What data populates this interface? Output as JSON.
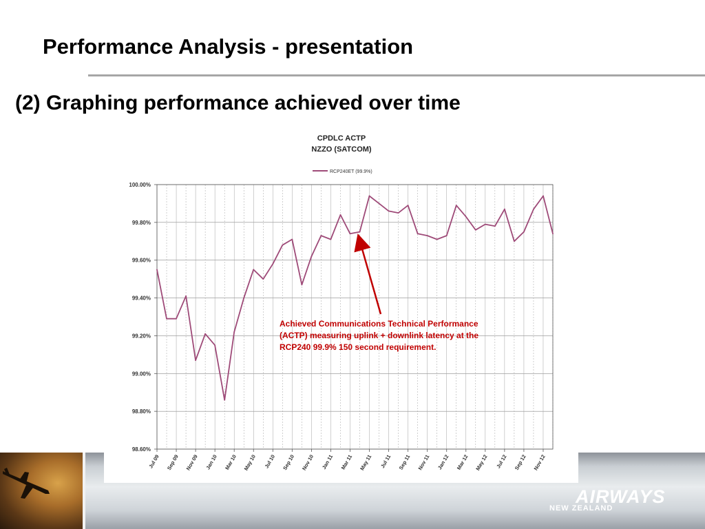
{
  "slide": {
    "title": "Performance Analysis - presentation",
    "subtitle": "(2) Graphing performance achieved over time"
  },
  "footer": {
    "brand": "AIRWAYS",
    "brand_sub": "NEW ZEALAND",
    "photo_icon": "airplane-icon"
  },
  "chart_data": {
    "type": "line",
    "title": "CPDLC ACTP",
    "subtitle": "NZZO (SATCOM)",
    "legend_position": "top",
    "grid": true,
    "ylim": [
      98.6,
      100.0
    ],
    "yticks": [
      100.0,
      99.8,
      99.6,
      99.4,
      99.2,
      99.0,
      98.8,
      98.6
    ],
    "ytick_labels": [
      "100.00%",
      "99.80%",
      "99.60%",
      "99.40%",
      "99.20%",
      "99.00%",
      "98.80%",
      "98.60%"
    ],
    "xtick_labels": [
      "Jul 09",
      "Sep 09",
      "Nov 09",
      "Jan 10",
      "Mar 10",
      "May 10",
      "Jul 10",
      "Sep 10",
      "Nov 10",
      "Jan 11",
      "Mar 11",
      "May 11",
      "Jul 11",
      "Sep 11",
      "Nov 11",
      "Jan 12",
      "Mar 12",
      "May 12",
      "Jul 12",
      "Sep 12",
      "Nov 12"
    ],
    "x": [
      "Jul 09",
      "Aug 09",
      "Sep 09",
      "Oct 09",
      "Nov 09",
      "Dec 09",
      "Jan 10",
      "Feb 10",
      "Mar 10",
      "Apr 10",
      "May 10",
      "Jun 10",
      "Jul 10",
      "Aug 10",
      "Sep 10",
      "Oct 10",
      "Nov 10",
      "Dec 10",
      "Jan 11",
      "Feb 11",
      "Mar 11",
      "Apr 11",
      "May 11",
      "Jun 11",
      "Jul 11",
      "Aug 11",
      "Sep 11",
      "Oct 11",
      "Nov 11",
      "Dec 11",
      "Jan 12",
      "Feb 12",
      "Mar 12",
      "Apr 12",
      "May 12",
      "Jun 12",
      "Jul 12",
      "Aug 12",
      "Sep 12",
      "Oct 12",
      "Nov 12",
      "Dec 12"
    ],
    "series": [
      {
        "name": "RCP240ET (99.9%)",
        "color": "#9e4a78",
        "values": [
          99.55,
          99.29,
          99.29,
          99.41,
          99.07,
          99.21,
          99.15,
          98.86,
          99.22,
          99.4,
          99.55,
          99.5,
          99.58,
          99.68,
          99.71,
          99.47,
          99.62,
          99.73,
          99.71,
          99.84,
          99.74,
          99.75,
          99.94,
          99.9,
          99.86,
          99.85,
          99.89,
          99.74,
          99.73,
          99.71,
          99.73,
          99.89,
          99.83,
          99.76,
          99.79,
          99.78,
          99.87,
          99.7,
          99.75,
          99.87,
          99.94,
          99.74
        ]
      }
    ],
    "annotation": {
      "text_lines": [
        "Achieved Communications Technical Performance",
        "(ACTP) measuring uplink + downlink latency at the",
        "RCP240 99.9% 150 second requirement."
      ],
      "color": "#c00000",
      "points_to": "Apr 11"
    }
  }
}
